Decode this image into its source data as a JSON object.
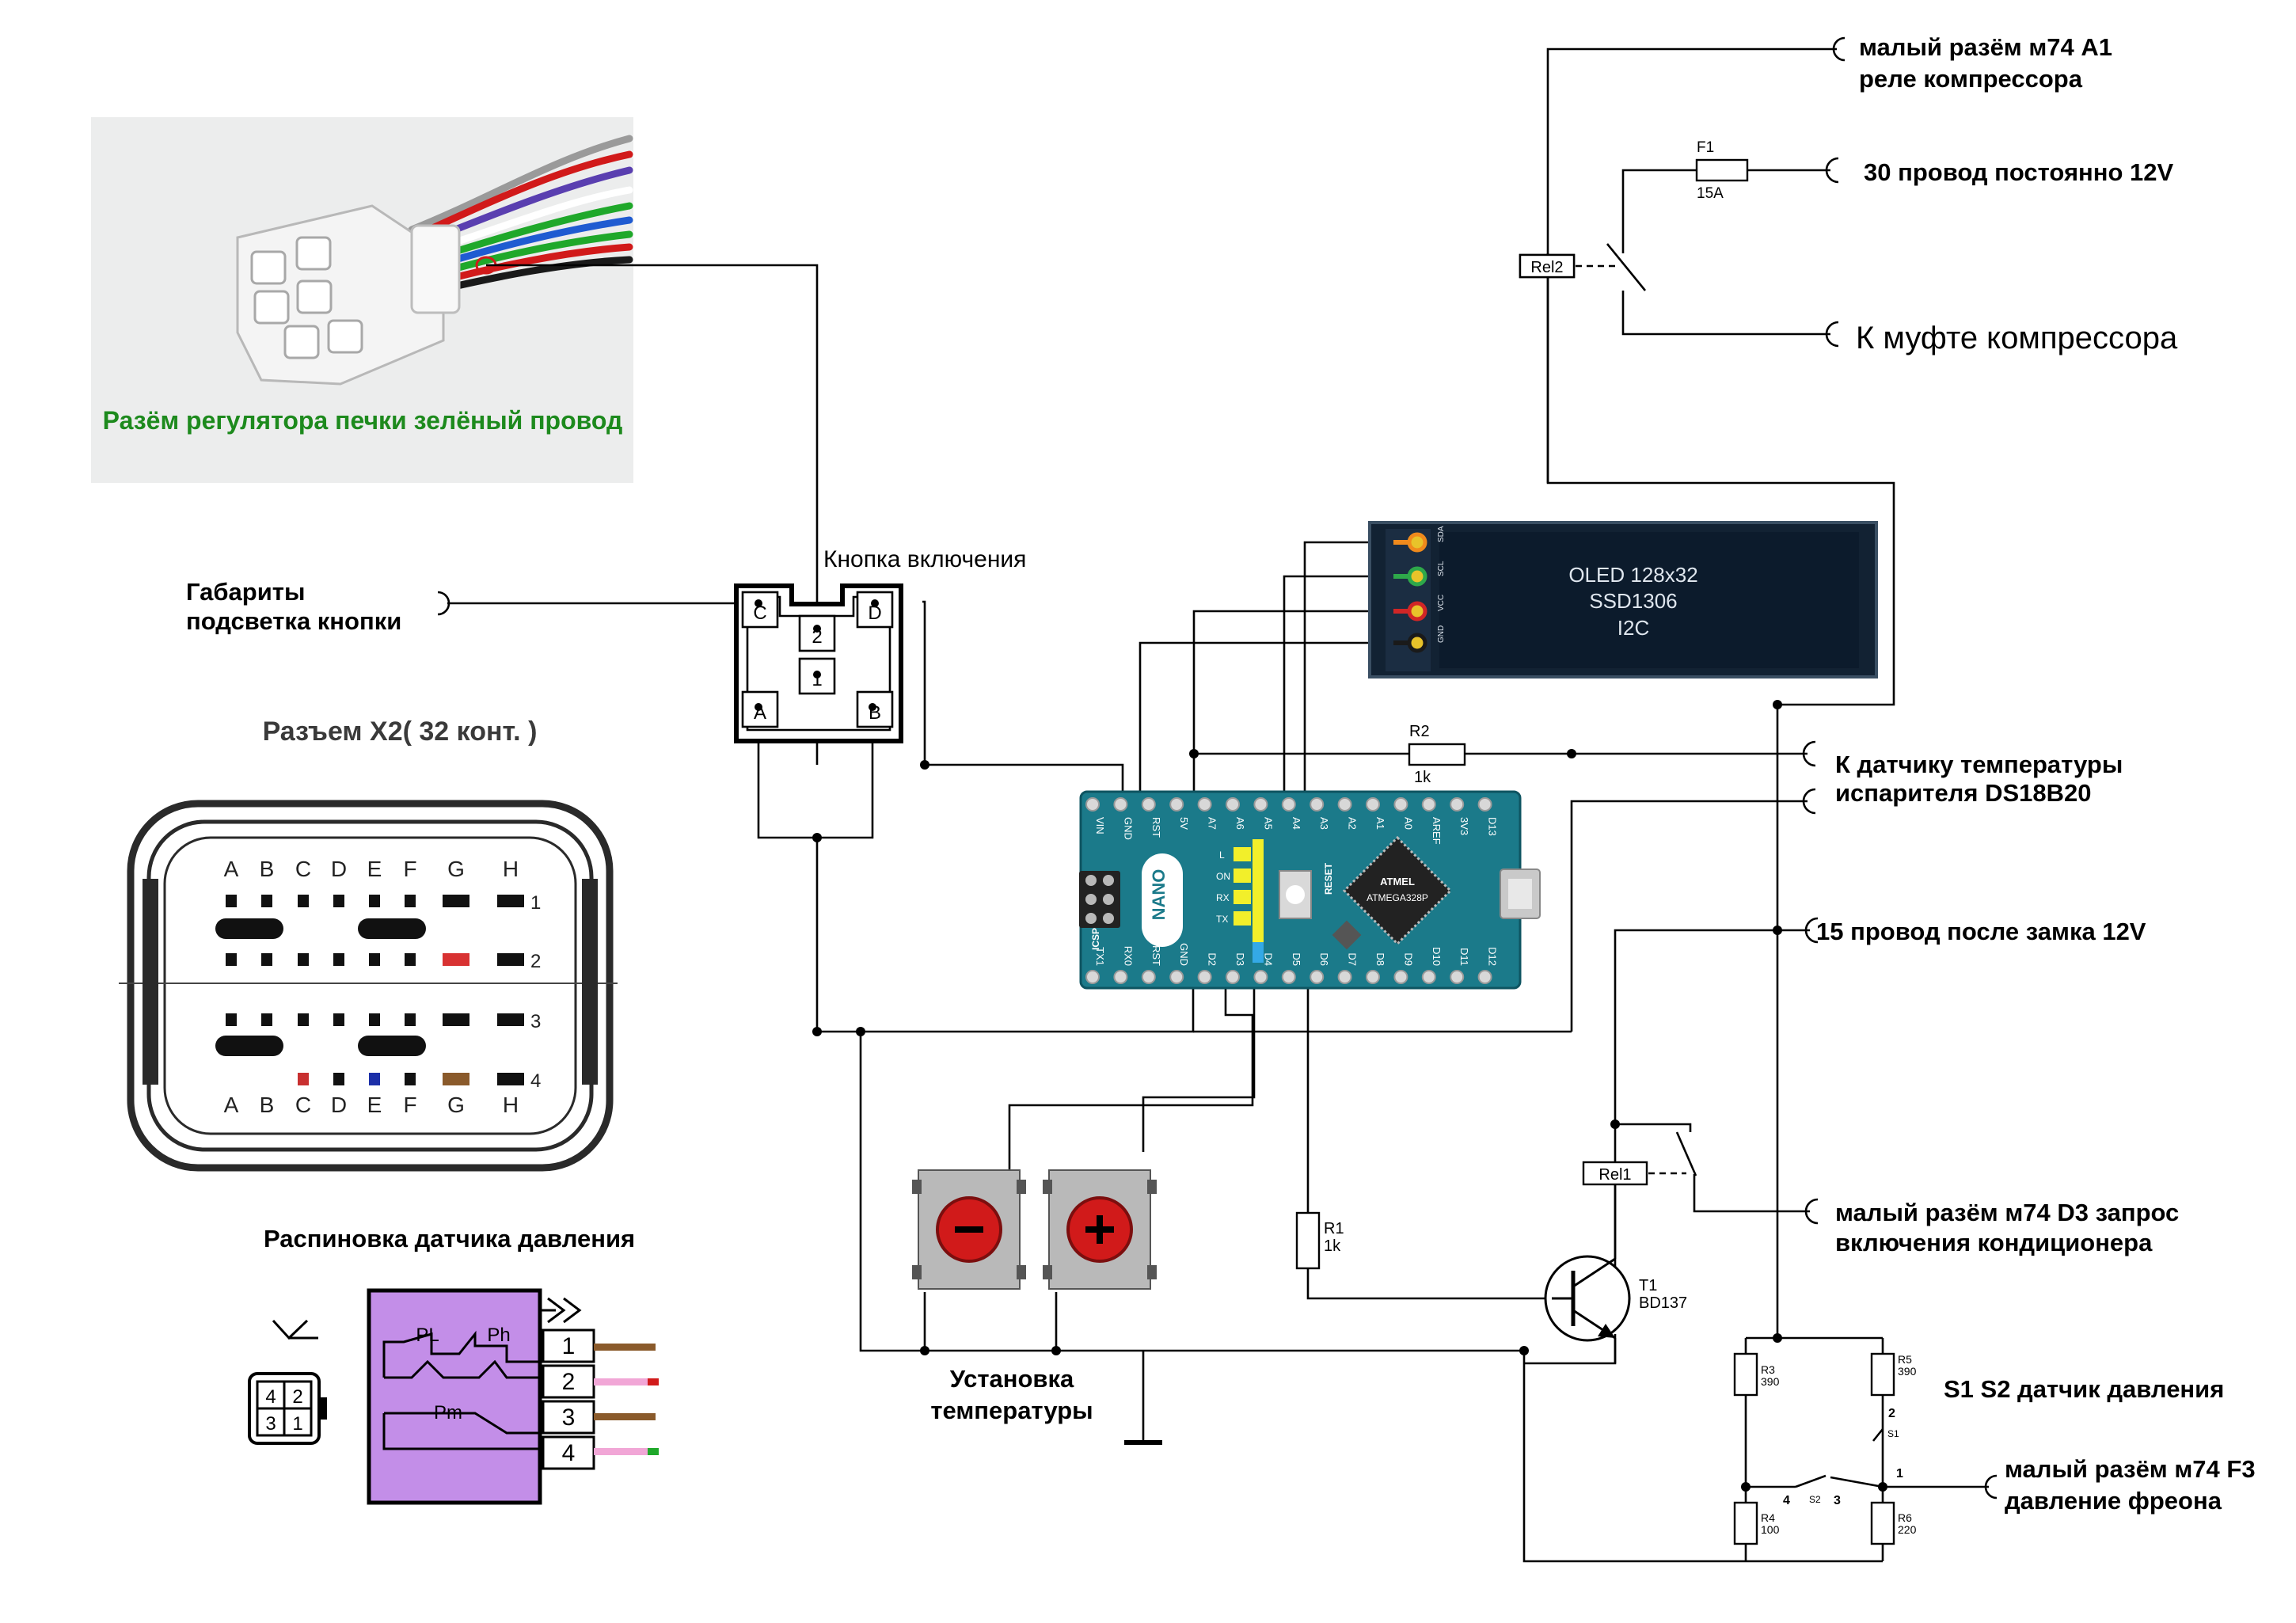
{
  "labels": {
    "relay_connector": "малый разём м74  A1",
    "relay_name": "реле компрессора",
    "fuse_name": "F1",
    "fuse_value": "15A",
    "wire30": "30 провод постоянно 12V",
    "relay2": "Rel2",
    "clutch": "К муфте компрессора",
    "heater_connector": "Разём регулятора печки зелёный провод",
    "power_button": "Кнопка включения",
    "gab_line1": "Габариты",
    "gab_line2": "подсветка кнопки",
    "x2_title": "Разъем X2( 32 конт. )",
    "pressure_pinout": "Распиновка датчика давления",
    "setpoint_line1": "Установка",
    "setpoint_line2": "температуры",
    "temp_line1": "К датчику температуры",
    "temp_line2": "испарителя  DS18B20",
    "ign_line": "15 провод после замка 12V",
    "ac_line1": "малый разём м74  D3 запрос",
    "ac_line2": "включения кондиционера",
    "sensor_title": "S1 S2 датчик давления",
    "f3_line1": "малый разём м74  F3",
    "f3_line2": "давление фреона",
    "relay1": "Rel1",
    "t1_name": "T1",
    "t1_type": "BD137",
    "r1_name": "R1",
    "r1_value": "1k",
    "r2_name": "R2",
    "r2_value": "1k",
    "r3_name": "R3",
    "r3_value": "390",
    "r4_name": "R4",
    "r4_value": "100",
    "r5_name": "R5",
    "r5_value": "390",
    "r6_name": "R6",
    "r6_value": "220",
    "s1_name": "S1",
    "s2_name": "S2",
    "node_1": "1",
    "node_2": "2",
    "node_3": "3",
    "node_4": "4"
  },
  "oled": {
    "line1": "OLED 128x32",
    "line2": "SSD1306",
    "line3": "I2C",
    "pins": [
      "SDA",
      "SCL",
      "VCC",
      "GND"
    ]
  },
  "nano": {
    "board_name": "NANO",
    "chip_line1": "ATMEL",
    "chip_line2": "ATMEGA328P",
    "reset": "RESET",
    "icsp": "ICSP",
    "top_pins": [
      "VIN",
      "GND",
      "RST",
      "5V",
      "A7",
      "A6",
      "A5",
      "A4",
      "A3",
      "A2",
      "A1",
      "A0",
      "AREF",
      "3V3",
      "D13"
    ],
    "bottom_pins": [
      "TX1",
      "RX0",
      "RST",
      "GND",
      "D2",
      "D3",
      "D4",
      "D5",
      "D6",
      "D7",
      "D8",
      "D9",
      "D10",
      "D11",
      "D12"
    ],
    "leds": [
      "L",
      "ON",
      "RX",
      "TX"
    ]
  },
  "button_pins": [
    "C",
    "D",
    "2",
    "1",
    "A",
    "B"
  ],
  "x2": {
    "columns": [
      "A",
      "B",
      "C",
      "D",
      "E",
      "F",
      "G",
      "H"
    ],
    "rows": [
      "1",
      "2",
      "3",
      "4"
    ]
  },
  "pressure": {
    "pl": "PL",
    "ph": "Ph",
    "pm": "Pm",
    "pins": [
      "1",
      "2",
      "3",
      "4"
    ],
    "connector_pins": [
      "4",
      "2",
      "3",
      "1"
    ]
  },
  "colors": {
    "wire": "#000000",
    "nano_board": "#1b7a8a",
    "oled_screen": "#0c1b2c",
    "sensor_box": "#c38ee8",
    "heater_label": "#1d8a1d",
    "button_red": "#d11a1a",
    "wire_brown": "#8a5a2b",
    "wire_pink": "#f1a6d6",
    "wire_green": "#1fa82a"
  }
}
